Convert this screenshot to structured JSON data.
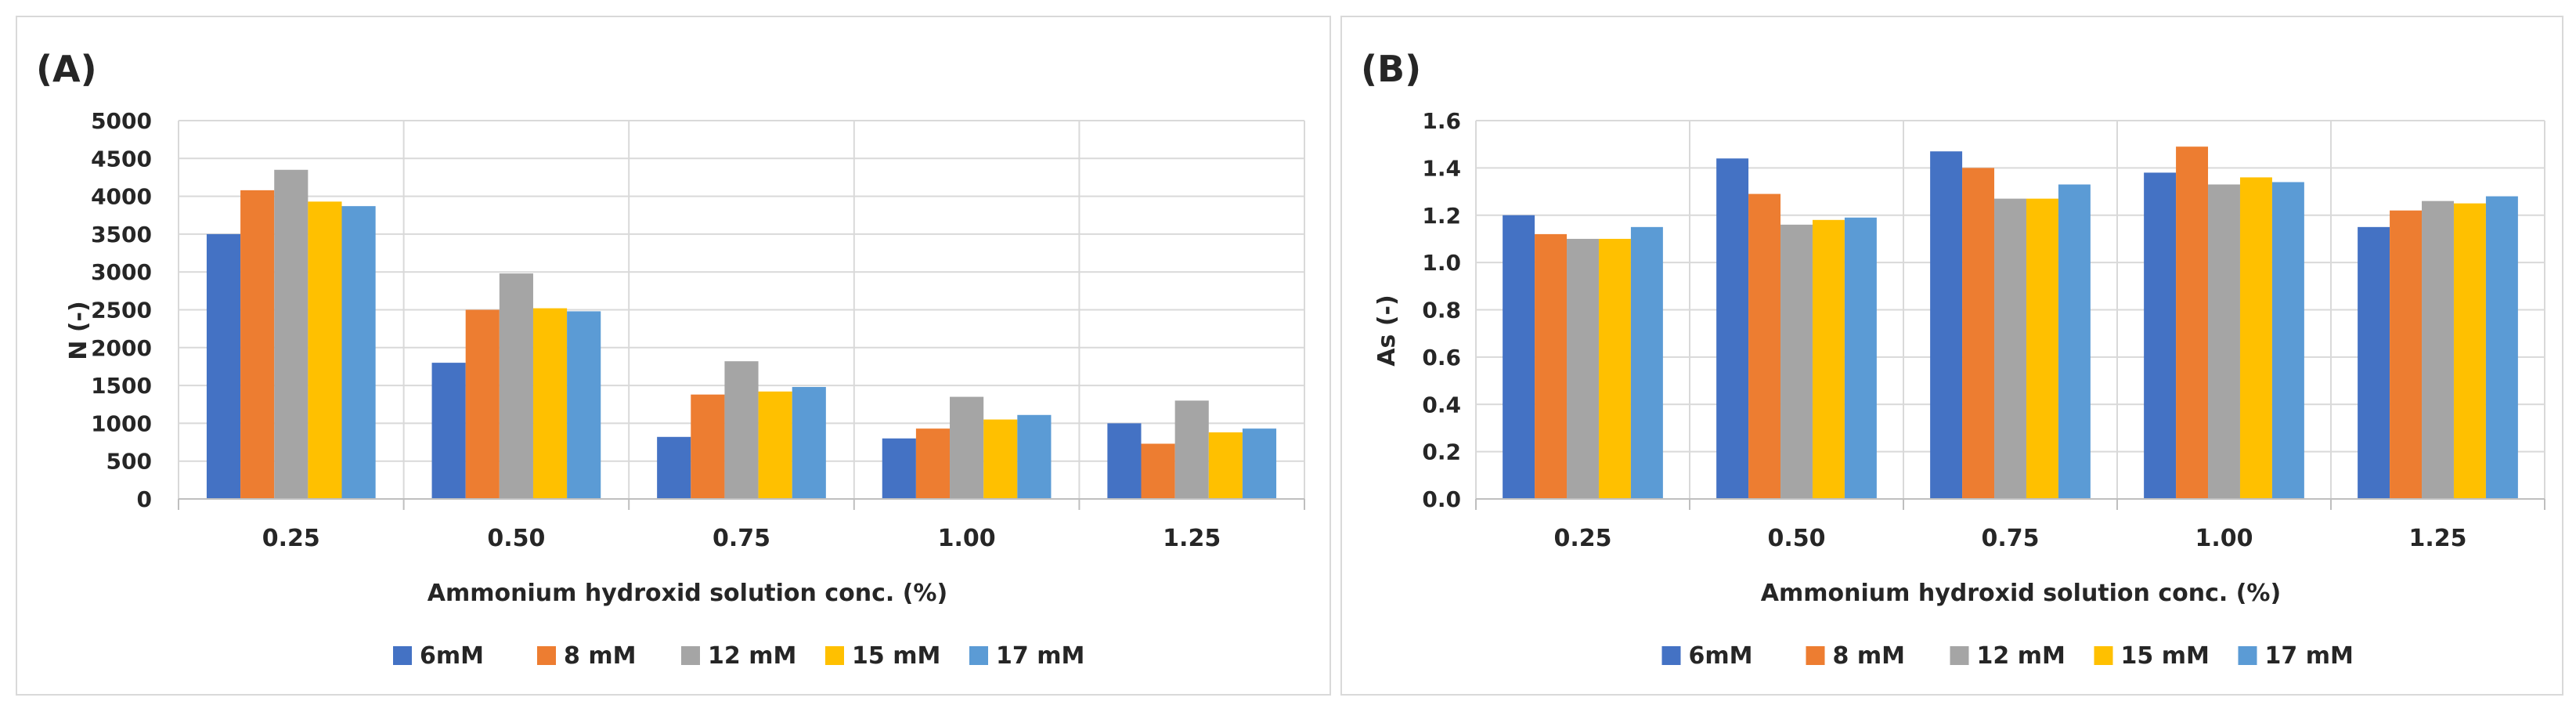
{
  "chart_data": [
    {
      "type": "bar",
      "panel_label": "(A)",
      "title": "",
      "xlabel": "Ammonium hydroxid solution conc. (%)",
      "ylabel": "N (-)",
      "ylim": [
        0,
        5000
      ],
      "ytick_step": 500,
      "ytick_decimals": 0,
      "grid": true,
      "legend": "bottom",
      "categories": [
        "0.25",
        "0.50",
        "0.75",
        "1.00",
        "1.25"
      ],
      "series": [
        {
          "name": "6mM",
          "color": "#4472c4",
          "values": [
            3500,
            1800,
            820,
            800,
            1000
          ]
        },
        {
          "name": "8 mM",
          "color": "#ed7d31",
          "values": [
            4080,
            2500,
            1380,
            930,
            730
          ]
        },
        {
          "name": "12 mM",
          "color": "#a5a5a5",
          "values": [
            4350,
            2980,
            1820,
            1350,
            1300
          ]
        },
        {
          "name": "15 mM",
          "color": "#ffc000",
          "values": [
            3930,
            2520,
            1420,
            1050,
            880
          ]
        },
        {
          "name": "17 mM",
          "color": "#5b9bd5",
          "values": [
            3870,
            2480,
            1480,
            1110,
            930
          ]
        }
      ]
    },
    {
      "type": "bar",
      "panel_label": "(B)",
      "title": "",
      "xlabel": "Ammonium hydroxid solution conc. (%)",
      "ylabel": "As (-)",
      "ylim": [
        0,
        1.6
      ],
      "ytick_step": 0.2,
      "ytick_decimals": 1,
      "grid": true,
      "legend": "bottom",
      "categories": [
        "0.25",
        "0.50",
        "0.75",
        "1.00",
        "1.25"
      ],
      "series": [
        {
          "name": "6mM",
          "color": "#4472c4",
          "values": [
            1.2,
            1.44,
            1.47,
            1.38,
            1.15
          ]
        },
        {
          "name": "8 mM",
          "color": "#ed7d31",
          "values": [
            1.12,
            1.29,
            1.4,
            1.49,
            1.22
          ]
        },
        {
          "name": "12 mM",
          "color": "#a5a5a5",
          "values": [
            1.1,
            1.16,
            1.27,
            1.33,
            1.26
          ]
        },
        {
          "name": "15 mM",
          "color": "#ffc000",
          "values": [
            1.1,
            1.18,
            1.27,
            1.36,
            1.25
          ]
        },
        {
          "name": "17 mM",
          "color": "#5b9bd5",
          "values": [
            1.15,
            1.19,
            1.33,
            1.34,
            1.28
          ]
        }
      ]
    }
  ]
}
